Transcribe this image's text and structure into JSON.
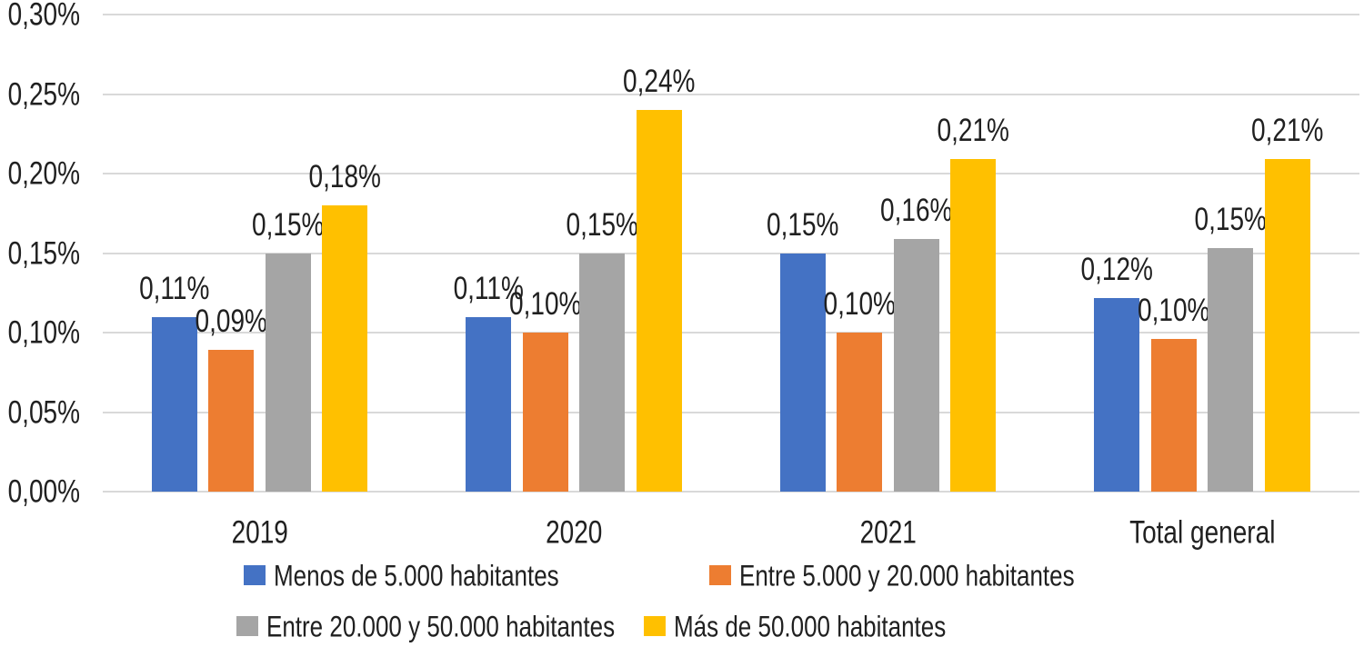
{
  "chart_data": {
    "type": "bar",
    "title": "",
    "categories": [
      "2019",
      "2020",
      "2021",
      "Total general"
    ],
    "series": [
      {
        "name": "Menos de 5.000 habitantes",
        "color": "#4472C4",
        "values": [
          0.11,
          0.11,
          0.15,
          0.122
        ],
        "labels": [
          "0,11%",
          "0,11%",
          "0,15%",
          "0,12%"
        ]
      },
      {
        "name": "Entre 5.000 y 20.000 habitantes",
        "color": "#ED7D31",
        "values": [
          0.089,
          0.1,
          0.1,
          0.096
        ],
        "labels": [
          "0,09%",
          "0,10%",
          "0,10%",
          "0,10%"
        ]
      },
      {
        "name": "Entre 20.000 y 50.000 habitantes",
        "color": "#A5A5A5",
        "values": [
          0.15,
          0.15,
          0.159,
          0.153
        ],
        "labels": [
          "0,15%",
          "0,15%",
          "0,16%",
          "0,15%"
        ]
      },
      {
        "name": "Más de 50.000 habitantes",
        "color": "#FFC000",
        "values": [
          0.18,
          0.24,
          0.209,
          0.209
        ],
        "labels": [
          "0,18%",
          "0,24%",
          "0,21%",
          "0,21%"
        ]
      }
    ],
    "y_axis": {
      "ticks": [
        "0,00%",
        "0,05%",
        "0,10%",
        "0,15%",
        "0,20%",
        "0,25%",
        "0,30%"
      ],
      "min": 0,
      "max": 0.3,
      "step": 0.05,
      "unit": "percent"
    },
    "data_labels_shown": true,
    "grid": true,
    "legend_position": "bottom",
    "gridline_color": "#D9D9D9",
    "text_color": "#202020",
    "background_color": "#FFFFFF"
  }
}
